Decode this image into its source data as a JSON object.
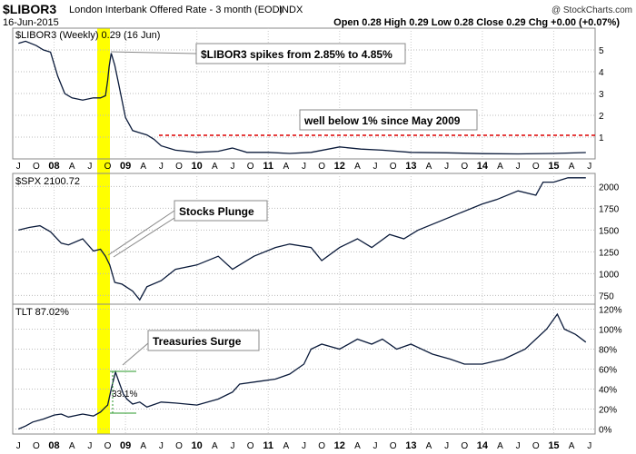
{
  "header": {
    "symbol": "$LIBOR3",
    "name": "London Interbank Offered Rate - 3 month (EOD)",
    "exchange": "INDX",
    "brand": "@ StockCharts.com",
    "date": "16-Jun-2015",
    "ohlc": "Open 0.28  High 0.29  Low 0.28  Close 0.29  Chg +0.00 (+0.07%)"
  },
  "panels": {
    "libor": {
      "label": "$LIBOR3 (Weekly) 0.29 (16 Jun)",
      "axis_ticks": [
        "5",
        "4",
        "3",
        "2",
        "1"
      ],
      "annotation_spike": "$LIBOR3 spikes from 2.85% to 4.85%",
      "annotation_below": "well below 1% since May 2009"
    },
    "spx": {
      "label": "$SPX 2100.72",
      "axis_ticks": [
        "2000",
        "1750",
        "1500",
        "1250",
        "1000",
        "750"
      ],
      "annotation": "Stocks Plunge"
    },
    "tlt": {
      "label": "TLT 87.02%",
      "axis_ticks": [
        "120%",
        "100%",
        "80%",
        "60%",
        "40%",
        "20%",
        "0%"
      ],
      "annotation": "Treasuries Surge",
      "change_label": "33.1%"
    }
  },
  "x_axis_labels": [
    "J",
    "O",
    "08",
    "A",
    "J",
    "O",
    "09",
    "A",
    "J",
    "O",
    "10",
    "A",
    "J",
    "O",
    "11",
    "A",
    "J",
    "O",
    "12",
    "A",
    "J",
    "O",
    "13",
    "A",
    "J",
    "O",
    "14",
    "A",
    "J",
    "O",
    "15",
    "A",
    "J"
  ],
  "colors": {
    "line": "#0a1a3a",
    "highlight": "#ffff00",
    "dashed": "#dd0000",
    "panel_border": "#888888"
  },
  "chart_data": [
    {
      "type": "line",
      "title": "$LIBOR3 (Weekly) 0.29 (16 Jun)",
      "x": [
        2007.5,
        2007.6,
        2007.75,
        2007.85,
        2007.95,
        2008.05,
        2008.15,
        2008.25,
        2008.4,
        2008.55,
        2008.65,
        2008.72,
        2008.75,
        2008.77,
        2008.8,
        2008.85,
        2008.9,
        2009.0,
        2009.1,
        2009.2,
        2009.3,
        2009.4,
        2009.5,
        2009.7,
        2010.0,
        2010.3,
        2010.5,
        2010.7,
        2011.0,
        2011.3,
        2011.6,
        2012.0,
        2012.3,
        2012.6,
        2013.0,
        2013.5,
        2014.0,
        2014.5,
        2015.0,
        2015.45
      ],
      "y": [
        5.3,
        5.4,
        5.2,
        5.0,
        4.9,
        3.8,
        3.0,
        2.8,
        2.7,
        2.8,
        2.8,
        2.9,
        3.6,
        4.2,
        4.85,
        4.3,
        3.5,
        1.9,
        1.3,
        1.2,
        1.1,
        0.9,
        0.6,
        0.4,
        0.3,
        0.35,
        0.5,
        0.3,
        0.3,
        0.25,
        0.3,
        0.55,
        0.45,
        0.4,
        0.3,
        0.28,
        0.24,
        0.23,
        0.25,
        0.29
      ],
      "ylim": [
        0,
        6
      ],
      "annotations": [
        "$LIBOR3 spikes from 2.85% to 4.85%",
        "well below 1% since May 2009"
      ]
    },
    {
      "type": "line",
      "title": "$SPX 2100.72",
      "x": [
        2007.5,
        2007.65,
        2007.8,
        2007.95,
        2008.1,
        2008.2,
        2008.4,
        2008.55,
        2008.65,
        2008.72,
        2008.78,
        2008.85,
        2008.95,
        2009.1,
        2009.2,
        2009.3,
        2009.5,
        2009.7,
        2010.0,
        2010.3,
        2010.5,
        2010.8,
        2011.1,
        2011.3,
        2011.6,
        2011.75,
        2012.0,
        2012.25,
        2012.45,
        2012.7,
        2012.9,
        2013.1,
        2013.4,
        2013.7,
        2014.0,
        2014.2,
        2014.5,
        2014.75,
        2014.85,
        2015.0,
        2015.2,
        2015.45
      ],
      "y": [
        1500,
        1530,
        1550,
        1480,
        1350,
        1330,
        1400,
        1260,
        1280,
        1200,
        1100,
        900,
        880,
        800,
        700,
        850,
        920,
        1050,
        1100,
        1200,
        1050,
        1200,
        1300,
        1340,
        1300,
        1150,
        1300,
        1400,
        1300,
        1450,
        1400,
        1500,
        1600,
        1700,
        1800,
        1850,
        1950,
        1900,
        2050,
        2050,
        2100,
        2100
      ],
      "ylim": [
        650,
        2150
      ],
      "annotations": [
        "Stocks Plunge"
      ]
    },
    {
      "type": "line",
      "title": "TLT 87.02%",
      "x": [
        2007.5,
        2007.6,
        2007.7,
        2007.85,
        2008.0,
        2008.1,
        2008.2,
        2008.4,
        2008.55,
        2008.65,
        2008.72,
        2008.75,
        2008.8,
        2008.86,
        2008.92,
        2008.97,
        2009.02,
        2009.1,
        2009.2,
        2009.3,
        2009.5,
        2009.7,
        2010.0,
        2010.3,
        2010.5,
        2010.6,
        2010.9,
        2011.1,
        2011.3,
        2011.5,
        2011.6,
        2011.75,
        2012.0,
        2012.25,
        2012.45,
        2012.6,
        2012.8,
        2013.0,
        2013.3,
        2013.55,
        2013.75,
        2014.0,
        2014.3,
        2014.6,
        2014.9,
        2015.05,
        2015.15,
        2015.3,
        2015.45
      ],
      "y": [
        0,
        3,
        7,
        10,
        14,
        15,
        12,
        15,
        13,
        17,
        22,
        24,
        40,
        57,
        45,
        35,
        30,
        25,
        27,
        22,
        27,
        26,
        24,
        30,
        37,
        45,
        48,
        50,
        55,
        65,
        80,
        85,
        80,
        90,
        85,
        90,
        80,
        85,
        75,
        70,
        65,
        65,
        70,
        80,
        100,
        115,
        100,
        95,
        87
      ],
      "ylim": [
        -5,
        125
      ],
      "annotations": [
        "Treasuries Surge",
        "33.1%"
      ]
    }
  ]
}
